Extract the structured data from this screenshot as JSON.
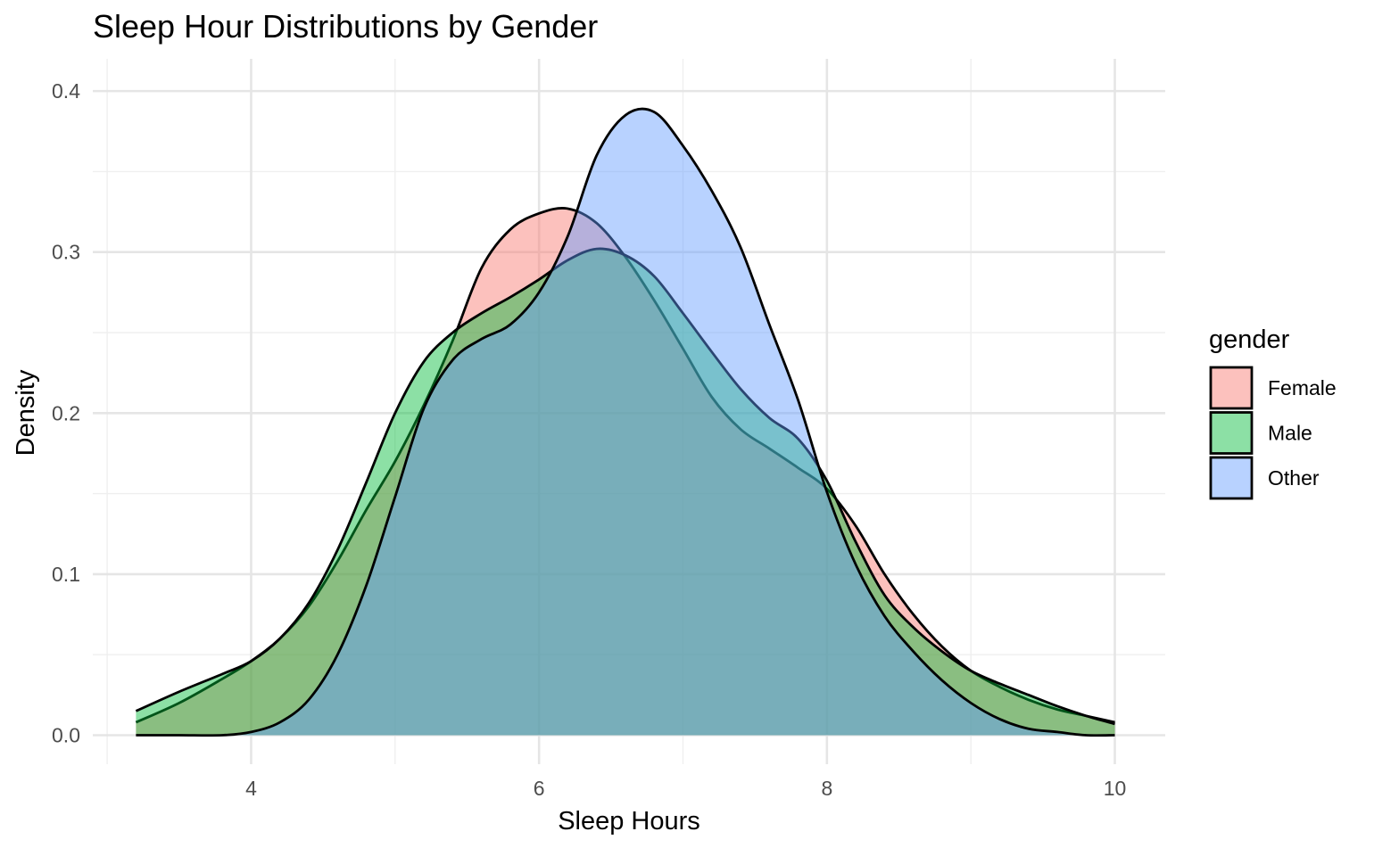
{
  "chart_data": {
    "type": "area",
    "subtype": "density",
    "title": "Sleep Hour Distributions by Gender",
    "xlabel": "Sleep Hours",
    "ylabel": "Density",
    "xlim": [
      2.9,
      10.35
    ],
    "ylim": [
      -0.018,
      0.42
    ],
    "xticks": [
      4,
      6,
      8,
      10
    ],
    "xtick_labels": [
      "4",
      "6",
      "8",
      "10"
    ],
    "yticks": [
      0.0,
      0.1,
      0.2,
      0.3,
      0.4
    ],
    "ytick_labels": [
      "0.0",
      "0.1",
      "0.2",
      "0.3",
      "0.4"
    ],
    "grid": true,
    "legend": {
      "title": "gender",
      "position": "right"
    },
    "series": [
      {
        "name": "Female",
        "color": "#F8766D",
        "x": [
          3.2,
          3.5,
          3.8,
          4.0,
          4.2,
          4.4,
          4.6,
          4.8,
          5.0,
          5.2,
          5.4,
          5.6,
          5.8,
          6.0,
          6.2,
          6.4,
          6.6,
          6.8,
          7.0,
          7.2,
          7.4,
          7.6,
          7.8,
          8.0,
          8.2,
          8.4,
          8.6,
          8.8,
          9.0,
          9.2,
          9.4,
          9.6,
          9.8,
          10.0
        ],
        "y": [
          0.008,
          0.02,
          0.035,
          0.046,
          0.06,
          0.08,
          0.108,
          0.14,
          0.17,
          0.205,
          0.245,
          0.29,
          0.314,
          0.324,
          0.327,
          0.318,
          0.297,
          0.27,
          0.24,
          0.21,
          0.19,
          0.178,
          0.166,
          0.153,
          0.13,
          0.1,
          0.075,
          0.055,
          0.04,
          0.03,
          0.022,
          0.016,
          0.012,
          0.008
        ]
      },
      {
        "name": "Male",
        "color": "#00BA38",
        "x": [
          3.2,
          3.5,
          3.8,
          4.0,
          4.2,
          4.4,
          4.6,
          4.8,
          5.0,
          5.2,
          5.4,
          5.6,
          5.8,
          6.0,
          6.2,
          6.4,
          6.6,
          6.8,
          7.0,
          7.2,
          7.4,
          7.6,
          7.8,
          8.0,
          8.2,
          8.4,
          8.6,
          8.8,
          9.0,
          9.2,
          9.4,
          9.6,
          9.8,
          10.0
        ],
        "y": [
          0.015,
          0.027,
          0.038,
          0.046,
          0.06,
          0.082,
          0.115,
          0.157,
          0.2,
          0.232,
          0.25,
          0.262,
          0.272,
          0.283,
          0.295,
          0.302,
          0.298,
          0.285,
          0.262,
          0.238,
          0.215,
          0.197,
          0.184,
          0.158,
          0.12,
          0.087,
          0.067,
          0.052,
          0.04,
          0.032,
          0.025,
          0.018,
          0.012,
          0.007
        ]
      },
      {
        "name": "Other",
        "color": "#619CFF",
        "x": [
          3.2,
          3.5,
          3.8,
          4.0,
          4.2,
          4.4,
          4.6,
          4.8,
          5.0,
          5.2,
          5.4,
          5.6,
          5.8,
          6.0,
          6.2,
          6.4,
          6.6,
          6.8,
          7.0,
          7.2,
          7.4,
          7.6,
          7.8,
          8.0,
          8.2,
          8.4,
          8.6,
          8.8,
          9.0,
          9.2,
          9.4,
          9.6,
          9.8,
          10.0
        ],
        "y": [
          0.0,
          0.0,
          0.0,
          0.002,
          0.008,
          0.022,
          0.05,
          0.093,
          0.148,
          0.203,
          0.233,
          0.246,
          0.255,
          0.275,
          0.31,
          0.36,
          0.385,
          0.387,
          0.366,
          0.338,
          0.303,
          0.255,
          0.208,
          0.151,
          0.106,
          0.074,
          0.052,
          0.034,
          0.02,
          0.01,
          0.004,
          0.002,
          0.0,
          0.0
        ]
      }
    ]
  }
}
